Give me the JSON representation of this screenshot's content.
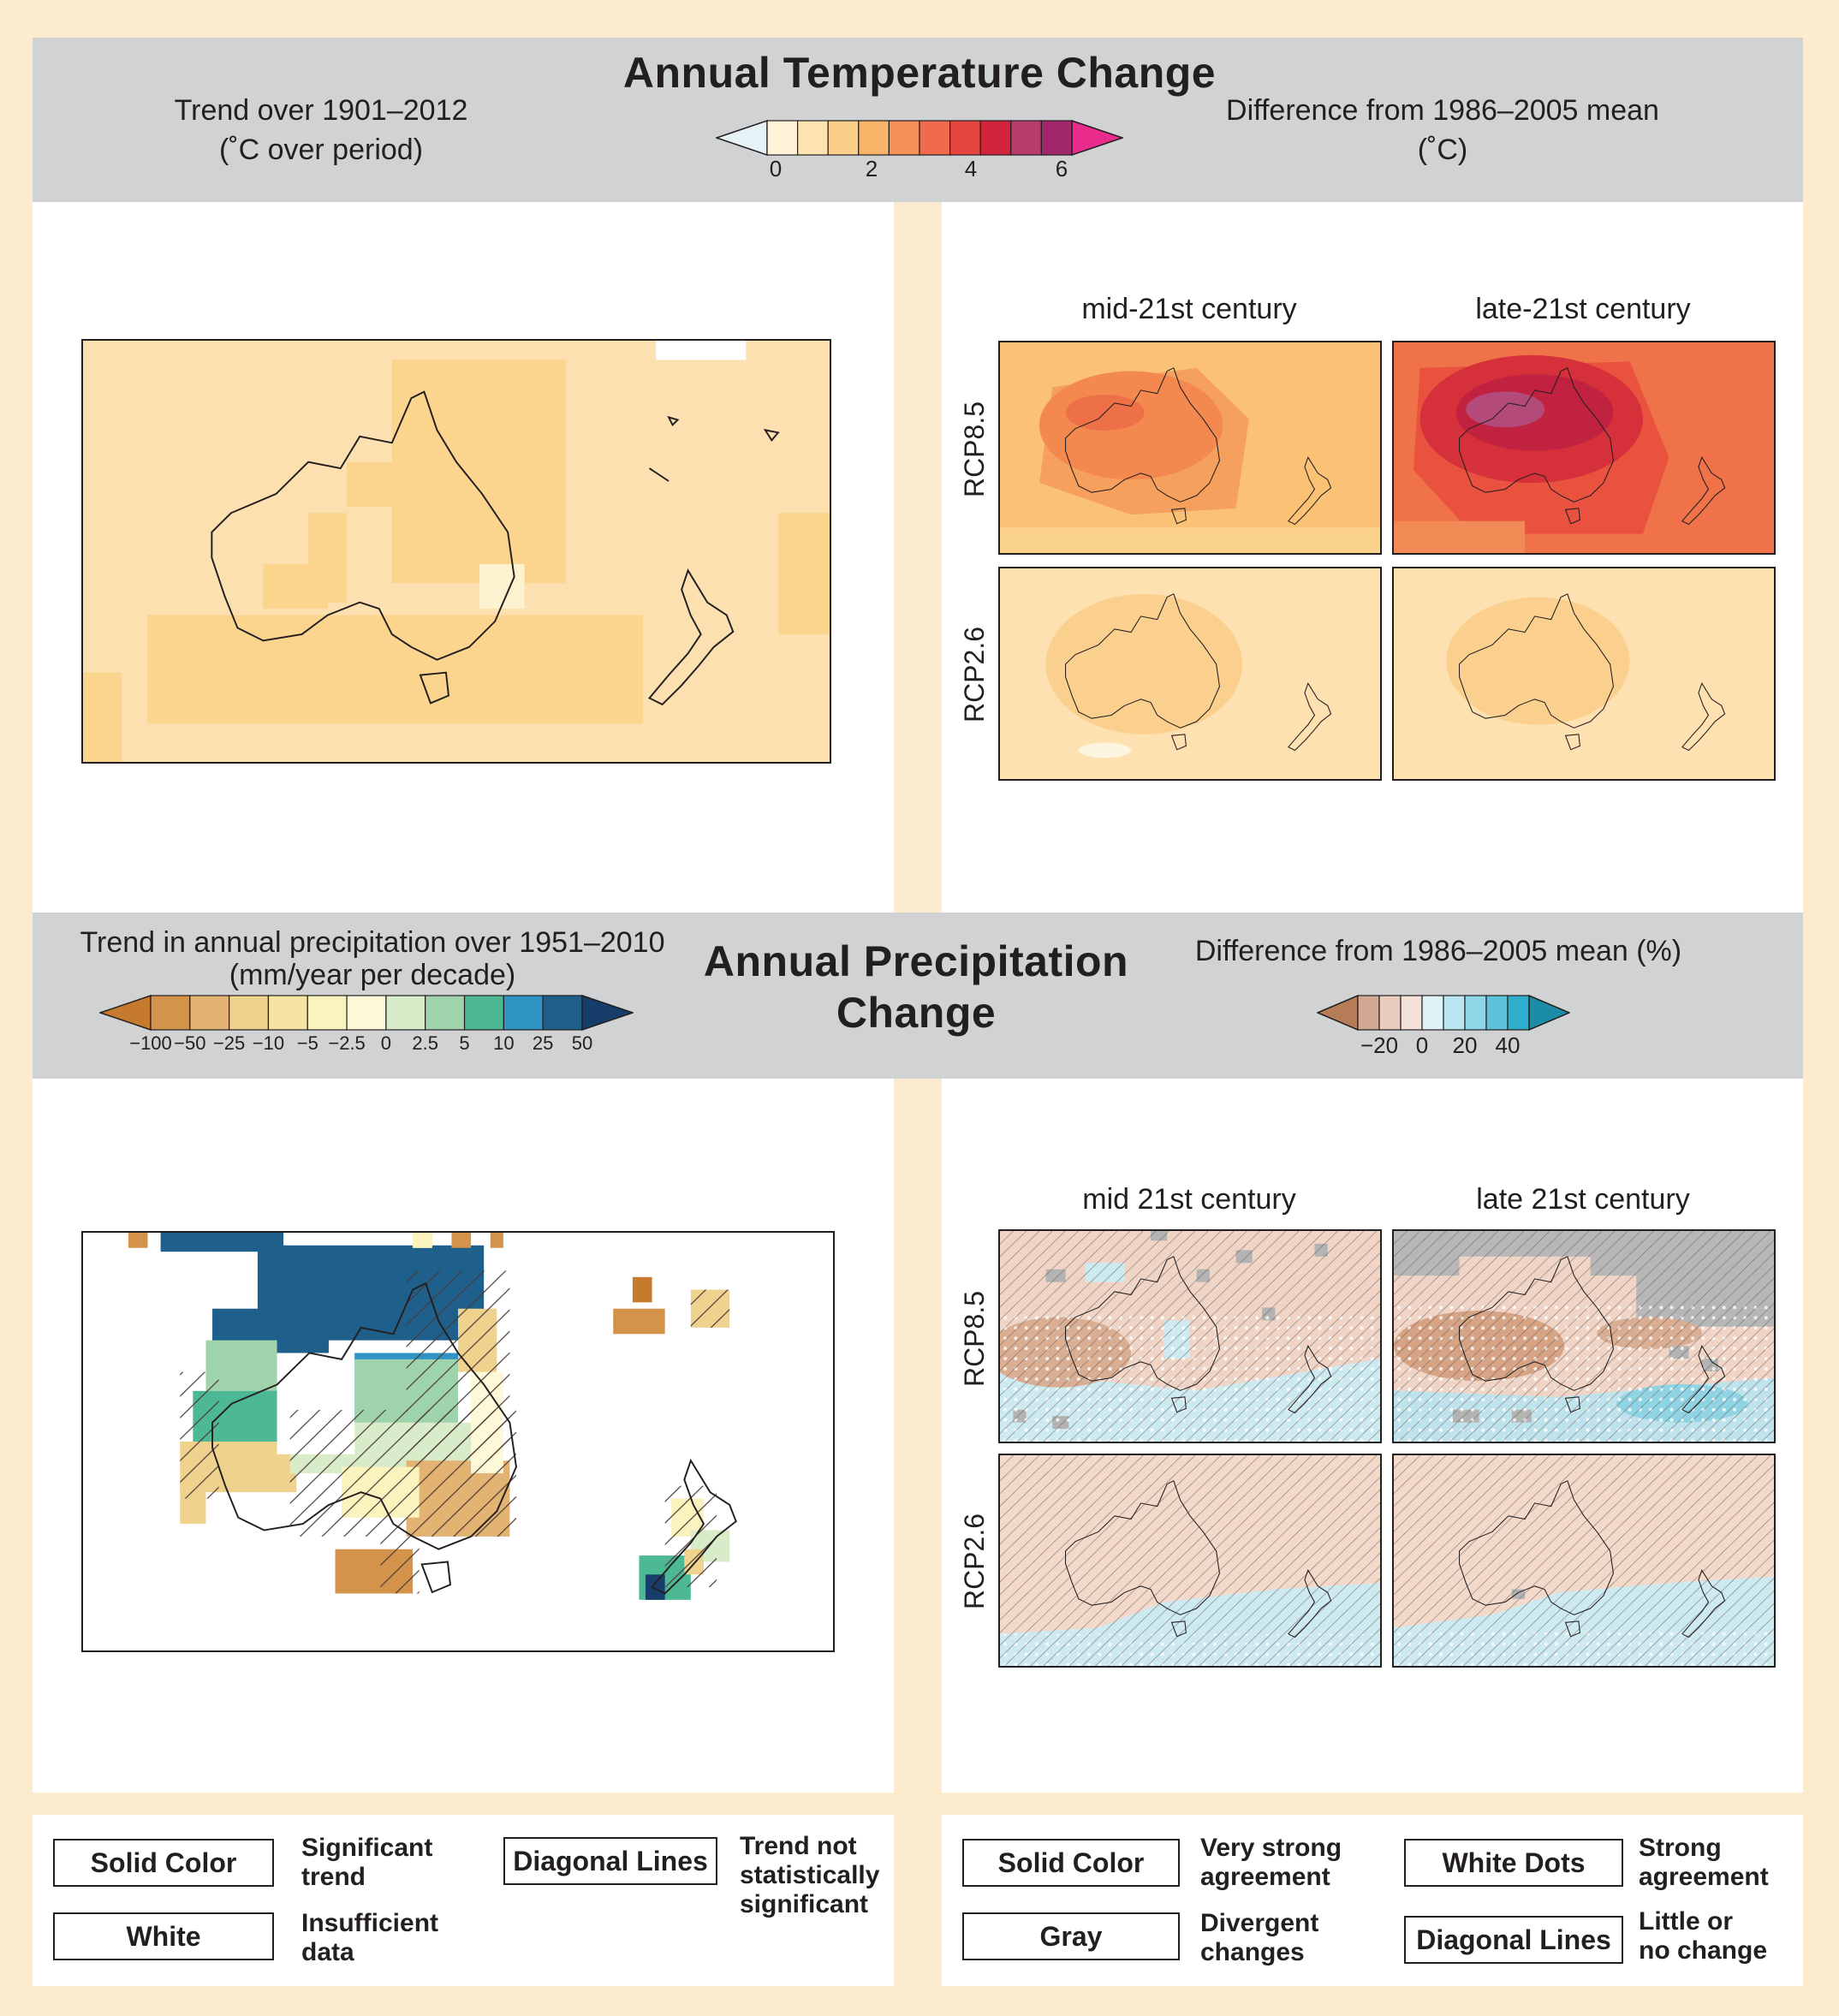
{
  "temperature": {
    "title": "Annual Temperature Change",
    "left_label_line1": "Trend over 1901–2012",
    "left_label_line2": "(˚C over period)",
    "right_label_line1": "Difference from 1986–2005 mean",
    "right_label_line2": "(˚C)",
    "scale_ticks": [
      "0",
      "2",
      "4",
      "6"
    ],
    "scale_colors": [
      "#e6f3f6",
      "#fff2d6",
      "#fde3b0",
      "#fbcf8a",
      "#f9b46a",
      "#f6905a",
      "#f06a4b",
      "#e6453f",
      "#d2243a",
      "#b73d6c",
      "#a2276a",
      "#e92b8c"
    ],
    "col_mid": "mid-21st century",
    "col_late": "late-21st century",
    "row_top": "RCP8.5",
    "row_bottom": "RCP2.6"
  },
  "precipitation": {
    "title_line1": "Annual Precipitation",
    "title_line2": "Change",
    "left_label_line1": "Trend in annual precipitation over 1951–2010",
    "left_label_line2": "(mm/year per decade)",
    "left_ticks": [
      "−100",
      "−50",
      "−25",
      "−10",
      "−5",
      "−2.5",
      "0",
      "2.5",
      "5",
      "10",
      "25",
      "50"
    ],
    "left_colors": [
      "#c67a2e",
      "#d3934b",
      "#e2b372",
      "#f0d28f",
      "#f6e4a3",
      "#fbf3bd",
      "#fcf8d8",
      "#d9ecc9",
      "#9fd3ac",
      "#4db894",
      "#2f93c4",
      "#1f5f8b",
      "#173e6b"
    ],
    "right_label": "Difference from 1986–2005 mean (%)",
    "right_ticks": [
      "−20",
      "0",
      "20",
      "40"
    ],
    "right_colors": [
      "#b67c58",
      "#d3a892",
      "#e9ccbe",
      "#f4e1d8",
      "#dff3f7",
      "#b9e6f0",
      "#8ed6e6",
      "#5cc2d9",
      "#2eadcc",
      "#1b8da8"
    ],
    "col_mid": "mid 21st century",
    "col_late": "late 21st century",
    "row_top": "RCP8.5",
    "row_bottom": "RCP2.6"
  },
  "legend_left": {
    "solid_color": "Solid Color",
    "solid_color_desc_1": "Significant",
    "solid_color_desc_2": "trend",
    "white": "White",
    "white_desc_1": "Insufficient",
    "white_desc_2": "data",
    "diagonal_lines": "Diagonal Lines",
    "diagonal_desc_1": "Trend not",
    "diagonal_desc_2": "statistically",
    "diagonal_desc_3": "significant"
  },
  "legend_right": {
    "solid_color": "Solid Color",
    "solid_color_desc_1": "Very strong",
    "solid_color_desc_2": "agreement",
    "gray": "Gray",
    "gray_desc_1": "Divergent",
    "gray_desc_2": "changes",
    "white_dots": "White Dots",
    "white_dots_desc_1": "Strong",
    "white_dots_desc_2": "agreement",
    "diagonal_lines": "Diagonal Lines",
    "diagonal_desc_1": "Little or",
    "diagonal_desc_2": "no change"
  }
}
